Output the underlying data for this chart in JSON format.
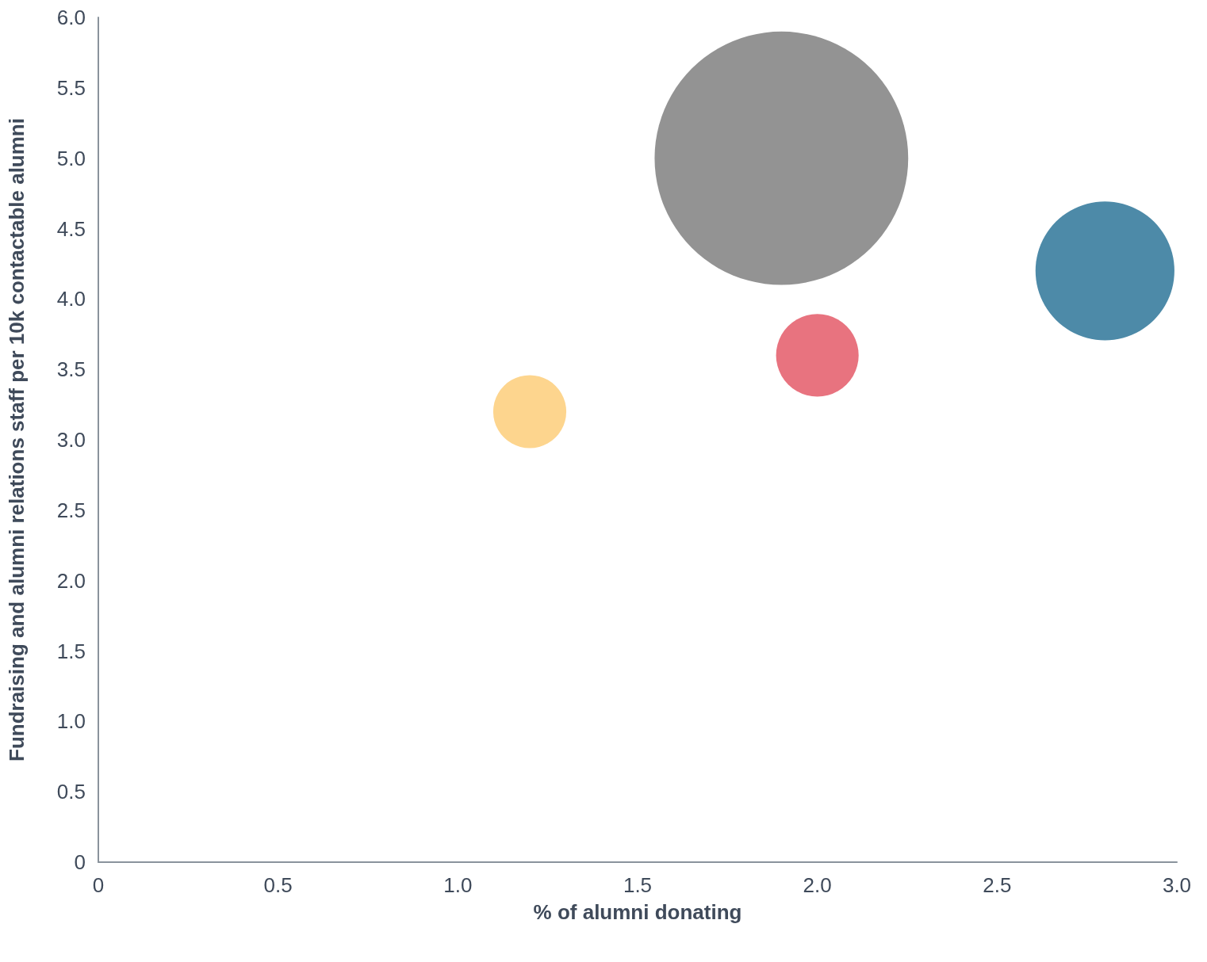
{
  "chart_data": {
    "type": "bubble",
    "xlabel": "% of alumni donating",
    "ylabel": "Fundraising and alumni relations staff per 10k contactable alumni",
    "x": [
      1.9,
      2.8,
      2.0,
      1.2
    ],
    "values": [
      5.0,
      4.2,
      3.6,
      3.2
    ],
    "sizes": [
      1,
      0.3,
      0.106,
      0.083
    ],
    "colors": [
      "#939393",
      "#4d8aa8",
      "#e8737f",
      "#fdd58e"
    ],
    "xlim": [
      0,
      3
    ],
    "xticks": [
      0,
      0.5,
      {
        "value": 1,
        "label": "1.0"
      },
      1.5,
      {
        "value": 2,
        "label": "2.0"
      },
      2.5,
      {
        "value": 3,
        "label": "3.0"
      }
    ],
    "ylim": [
      0,
      6
    ],
    "yticks": [
      0,
      0.5,
      {
        "value": 1,
        "label": "1.0"
      },
      1.5,
      {
        "value": 2,
        "label": "2.0"
      },
      2.5,
      {
        "value": 3,
        "label": "3.0"
      },
      3.5,
      {
        "value": 4,
        "label": "4.0"
      },
      4.5,
      {
        "value": 5,
        "label": "5.0"
      },
      5.5,
      {
        "value": 6,
        "label": "6.0"
      }
    ],
    "marker": "circle"
  }
}
